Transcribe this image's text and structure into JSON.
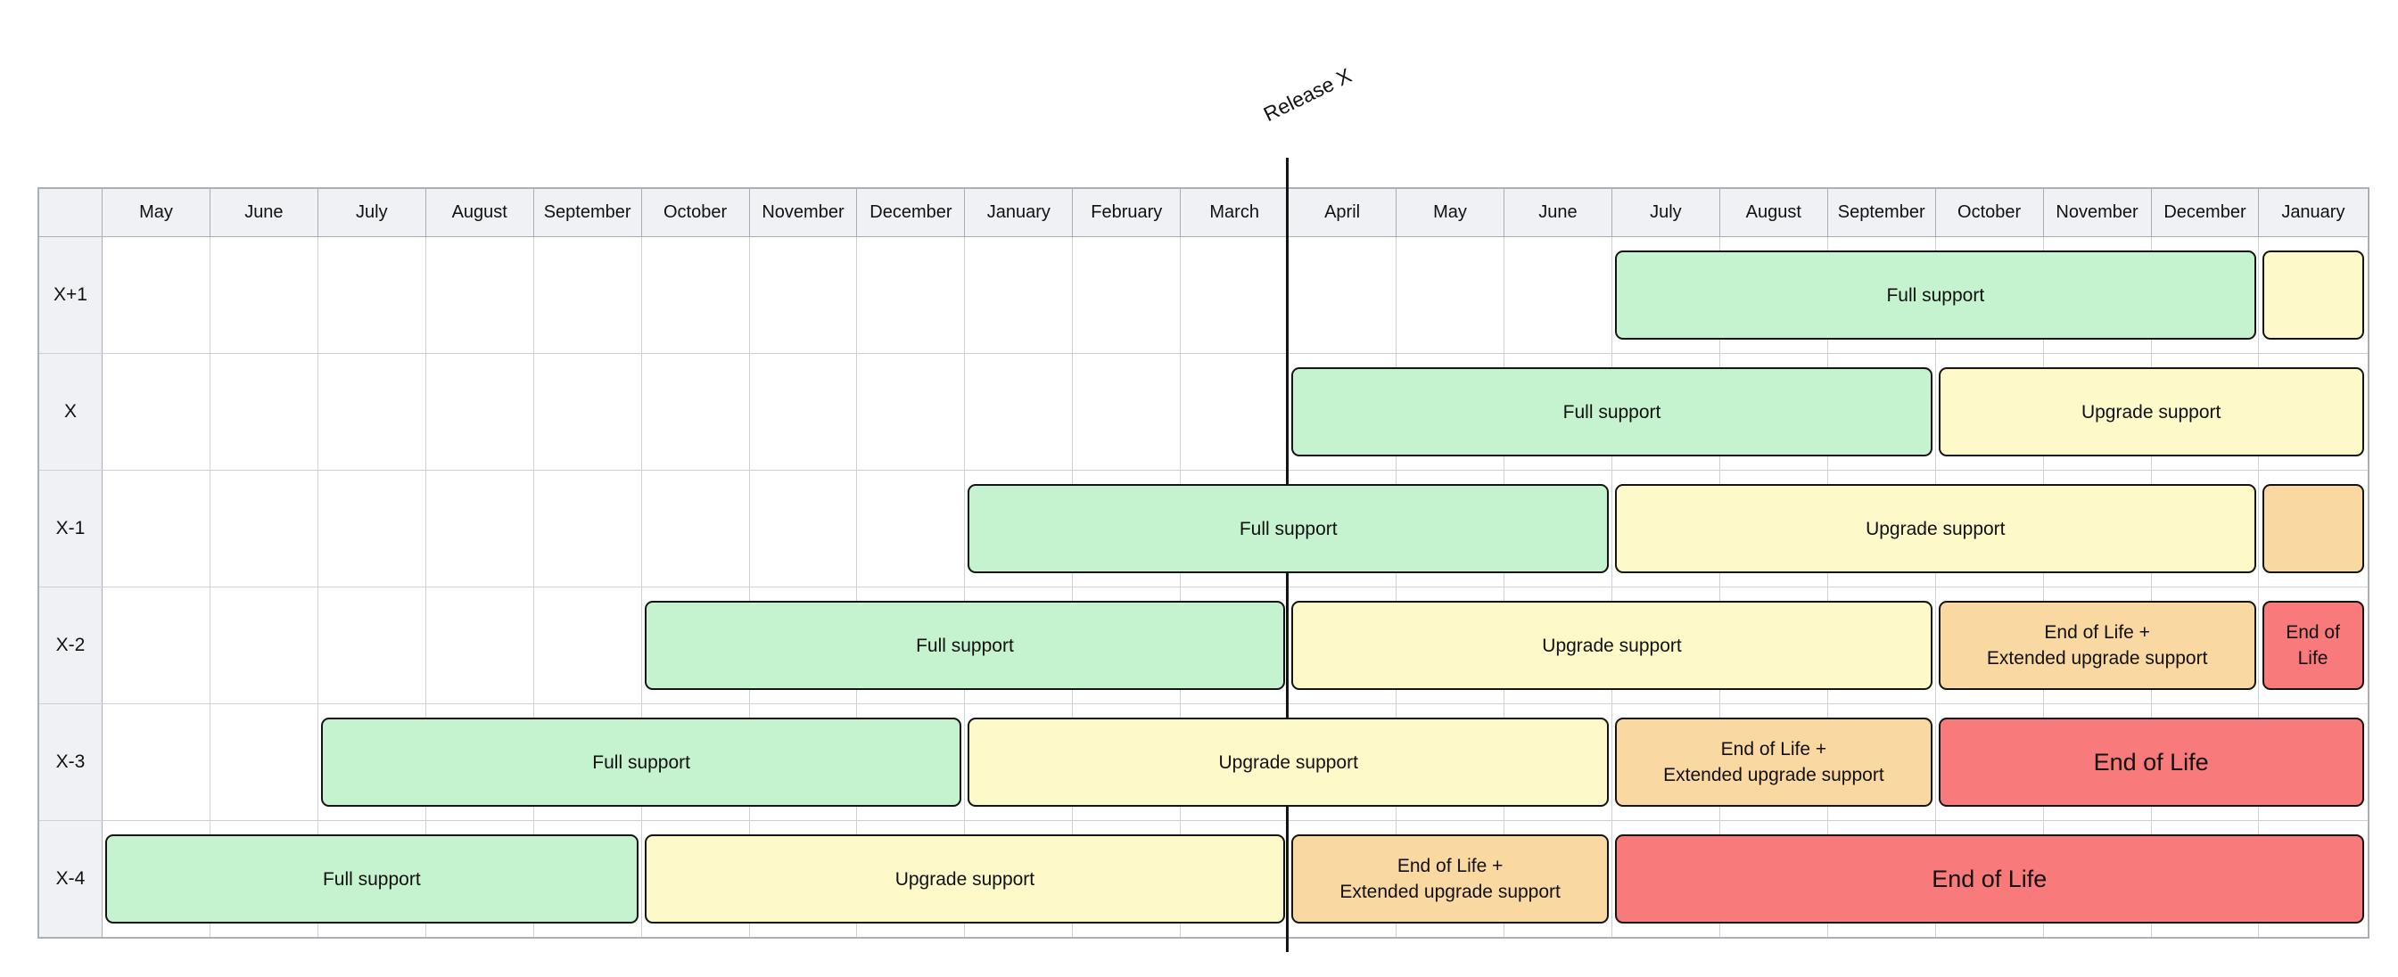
{
  "palette": {
    "background": "#ffffff",
    "header_cell_bg": "#f0f1f4",
    "header_grid_line": "#a9aeb9",
    "body_grid_line": "#ccd0d7",
    "bar_border": "#141414",
    "marker_line": "#141414",
    "text": "#111111"
  },
  "chart_data": {
    "type": "gantt",
    "timeline_unit": "month",
    "months": [
      "May",
      "June",
      "July",
      "August",
      "September",
      "October",
      "November",
      "December",
      "January",
      "February",
      "March",
      "April",
      "May",
      "June",
      "July",
      "August",
      "September",
      "October",
      "November",
      "December",
      "January"
    ],
    "release_marker": {
      "label": "Release X",
      "at_month_boundary_index": 11
    },
    "phases": {
      "full_support": {
        "label": "Full support",
        "color": "#c6f3cf"
      },
      "upgrade_support": {
        "label": "Upgrade support",
        "color": "#fdf9c9"
      },
      "eol_extended_upgrade_support": {
        "label": "End of Life + Extended upgrade support",
        "color": "#fad8a2"
      },
      "end_of_life": {
        "label": "End of Life",
        "color": "#f87a7a"
      }
    },
    "rows": [
      {
        "label": "X+1",
        "segments": [
          {
            "phase": "full_support",
            "label_lines": [
              "Full support"
            ],
            "start_month_index": 14,
            "span_months": 6
          },
          {
            "phase": "upgrade_support",
            "label_lines": [],
            "start_month_index": 20,
            "span_months": 1
          }
        ]
      },
      {
        "label": "X",
        "segments": [
          {
            "phase": "full_support",
            "label_lines": [
              "Full support"
            ],
            "start_month_index": 11,
            "span_months": 6
          },
          {
            "phase": "upgrade_support",
            "label_lines": [
              "Upgrade support"
            ],
            "start_month_index": 17,
            "span_months": 4
          }
        ]
      },
      {
        "label": "X-1",
        "segments": [
          {
            "phase": "full_support",
            "label_lines": [
              "Full support"
            ],
            "start_month_index": 8,
            "span_months": 6
          },
          {
            "phase": "upgrade_support",
            "label_lines": [
              "Upgrade support"
            ],
            "start_month_index": 14,
            "span_months": 6
          },
          {
            "phase": "eol_extended_upgrade_support",
            "label_lines": [],
            "start_month_index": 20,
            "span_months": 1
          }
        ]
      },
      {
        "label": "X-2",
        "segments": [
          {
            "phase": "full_support",
            "label_lines": [
              "Full support"
            ],
            "start_month_index": 5,
            "span_months": 6
          },
          {
            "phase": "upgrade_support",
            "label_lines": [
              "Upgrade support"
            ],
            "start_month_index": 11,
            "span_months": 6
          },
          {
            "phase": "eol_extended_upgrade_support",
            "label_lines": [
              "End of Life +",
              "Extended upgrade support"
            ],
            "start_month_index": 17,
            "span_months": 3
          },
          {
            "phase": "end_of_life",
            "label_lines": [
              "End of",
              "Life"
            ],
            "start_month_index": 20,
            "span_months": 1
          }
        ]
      },
      {
        "label": "X-3",
        "segments": [
          {
            "phase": "full_support",
            "label_lines": [
              "Full support"
            ],
            "start_month_index": 2,
            "span_months": 6
          },
          {
            "phase": "upgrade_support",
            "label_lines": [
              "Upgrade support"
            ],
            "start_month_index": 8,
            "span_months": 6
          },
          {
            "phase": "eol_extended_upgrade_support",
            "label_lines": [
              "End of Life +",
              "Extended upgrade support"
            ],
            "start_month_index": 14,
            "span_months": 3
          },
          {
            "phase": "end_of_life",
            "label_lines": [
              "End of Life"
            ],
            "large_text": true,
            "start_month_index": 17,
            "span_months": 4
          }
        ]
      },
      {
        "label": "X-4",
        "segments": [
          {
            "phase": "full_support",
            "label_lines": [
              "Full support"
            ],
            "start_month_index": 0,
            "span_months": 5
          },
          {
            "phase": "upgrade_support",
            "label_lines": [
              "Upgrade support"
            ],
            "start_month_index": 5,
            "span_months": 6
          },
          {
            "phase": "eol_extended_upgrade_support",
            "label_lines": [
              "End of Life +",
              "Extended upgrade support"
            ],
            "start_month_index": 11,
            "span_months": 3
          },
          {
            "phase": "end_of_life",
            "label_lines": [
              "End of Life"
            ],
            "large_text": true,
            "start_month_index": 14,
            "span_months": 7
          }
        ]
      }
    ]
  }
}
